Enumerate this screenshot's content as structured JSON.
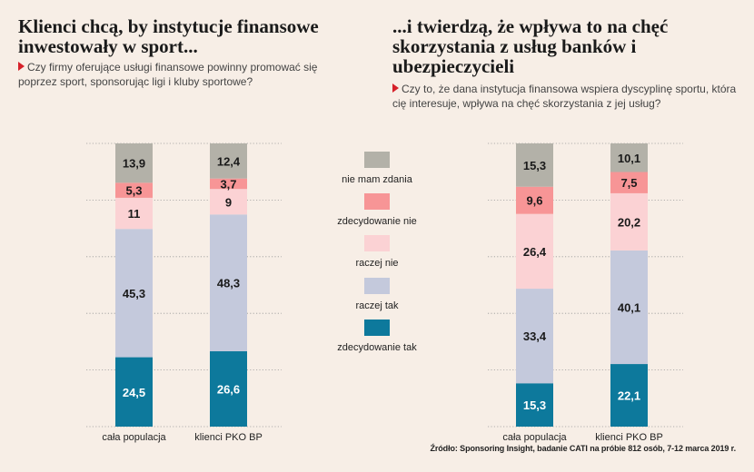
{
  "chart_data": [
    {
      "type": "bar",
      "stacked": true,
      "title": "Klienci chcą, by instytucje finansowe inwestowały w sport...",
      "subtitle": "Czy firmy oferujące usługi finansowe powinny promować się poprzez sport, sponsorując ligi i kluby sportowe?",
      "categories": [
        "cała populacja",
        "klienci PKO BP"
      ],
      "series": [
        {
          "name": "zdecydowanie tak",
          "values": [
            24.5,
            26.6
          ]
        },
        {
          "name": "raczej tak",
          "values": [
            45.3,
            48.3
          ]
        },
        {
          "name": "raczej nie",
          "values": [
            11,
            9
          ]
        },
        {
          "name": "zdecydowanie nie",
          "values": [
            5.3,
            3.7
          ]
        },
        {
          "name": "nie mam zdania",
          "values": [
            13.9,
            12.4
          ]
        }
      ],
      "ylim": [
        0,
        100
      ],
      "grid": true
    },
    {
      "type": "bar",
      "stacked": true,
      "title": "...i twierdzą, że wpływa to na chęć skorzystania z usług banków i ubezpieczycieli",
      "subtitle": "Czy to, że dana instytucja finansowa wspiera dyscyplinę sportu, która cię interesuje, wpływa na chęć skorzystania z jej usług?",
      "categories": [
        "cała populacja",
        "klienci PKO BP"
      ],
      "series": [
        {
          "name": "zdecydowanie tak",
          "values": [
            15.3,
            22.1
          ]
        },
        {
          "name": "raczej tak",
          "values": [
            33.4,
            40.1
          ]
        },
        {
          "name": "raczej nie",
          "values": [
            26.4,
            20.2
          ]
        },
        {
          "name": "zdecydowanie nie",
          "values": [
            9.6,
            7.5
          ]
        },
        {
          "name": "nie mam zdania",
          "values": [
            15.3,
            10.1
          ]
        }
      ],
      "ylim": [
        0,
        100
      ],
      "grid": true
    }
  ],
  "legend": {
    "placement": "center",
    "items": [
      {
        "name": "nie mam zdania",
        "color": "#b3b1a8"
      },
      {
        "name": "zdecydowanie nie",
        "color": "#f79596"
      },
      {
        "name": "raczej nie",
        "color": "#fbd2d4"
      },
      {
        "name": "raczej tak",
        "color": "#c4c9dc"
      },
      {
        "name": "zdecydowanie tak",
        "color": "#0d799c"
      }
    ]
  },
  "colors": {
    "zdecydowanie tak": "#0d799c",
    "raczej tak": "#c4c9dc",
    "raczej nie": "#fbd2d4",
    "zdecydowanie nie": "#f79596",
    "nie mam zdania": "#b3b1a8",
    "accent": "#d6212a"
  },
  "source": "Źródło: Sponsoring Insight, badanie CATI na próbie 812 osób, 7-12 marca 2019 r."
}
